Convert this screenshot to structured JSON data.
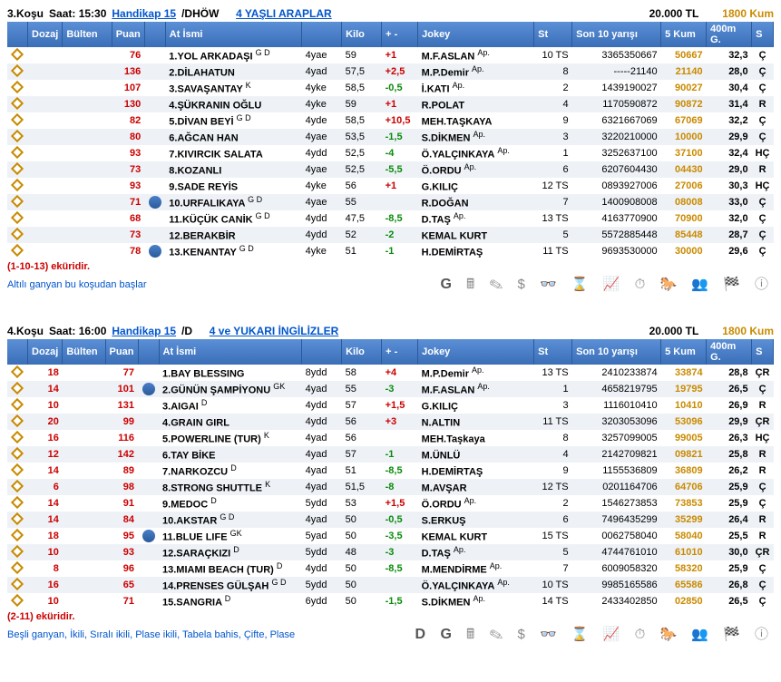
{
  "header_labels": {
    "dozaj": "Dozaj",
    "bulten": "Bülten",
    "puan": "Puan",
    "at": "At İsmi",
    "kilo": "Kilo",
    "plus": "+ -",
    "jokey": "Jokey",
    "st": "St",
    "son10": "Son 10 yarışı",
    "kum5": "5 Kum",
    "m400": "400m G.",
    "S": "S"
  },
  "races": [
    {
      "num": "3.Koşu",
      "time": "Saat: 15:30",
      "link": "Handikap 15",
      "type": "/DHÖW",
      "subtitle": "4 YAŞLI ARAPLAR",
      "prize": "20.000 TL",
      "dist": "1800 Kum",
      "rows": [
        {
          "dozaj": "",
          "puan": "76",
          "silk": false,
          "horse": "1.YOL ARKADAŞI",
          "sup": "G D",
          "age": "4yae",
          "kilo": "59",
          "plus": "+1",
          "pc": "red",
          "jokey": "M.F.ASLAN",
          "jsup": "Ap.",
          "st": "10 TS",
          "son10": "3365350667",
          "kum5": "50667",
          "m400": "32,3",
          "S": "Ç"
        },
        {
          "dozaj": "",
          "puan": "136",
          "silk": false,
          "horse": "2.DİLAHATUN",
          "sup": "",
          "age": "4yad",
          "kilo": "57,5",
          "plus": "+2,5",
          "pc": "red",
          "jokey": "M.P.Demir",
          "jsup": "Ap.",
          "st": "8",
          "son10": "-----21140",
          "kum5": "21140",
          "m400": "28,0",
          "S": "Ç"
        },
        {
          "dozaj": "",
          "puan": "107",
          "silk": false,
          "horse": "3.SAVAŞANTAY",
          "sup": "K",
          "age": "4yke",
          "kilo": "58,5",
          "plus": "-0,5",
          "pc": "green",
          "jokey": "İ.KATI",
          "jsup": "Ap.",
          "st": "2",
          "son10": "1439190027",
          "kum5": "90027",
          "m400": "30,4",
          "S": "Ç"
        },
        {
          "dozaj": "",
          "puan": "130",
          "silk": false,
          "horse": "4.ŞÜKRANIN OĞLU",
          "sup": "",
          "age": "4yke",
          "kilo": "59",
          "plus": "+1",
          "pc": "red",
          "jokey": "R.POLAT",
          "jsup": "",
          "st": "4",
          "son10": "1170590872",
          "kum5": "90872",
          "m400": "31,4",
          "S": "R"
        },
        {
          "dozaj": "",
          "puan": "82",
          "silk": false,
          "horse": "5.DİVAN BEYİ",
          "sup": "G D",
          "age": "4yde",
          "kilo": "58,5",
          "plus": "+10,5",
          "pc": "red",
          "jokey": "MEH.TAŞKAYA",
          "jsup": "",
          "st": "9",
          "son10": "6321667069",
          "kum5": "67069",
          "m400": "32,2",
          "S": "Ç"
        },
        {
          "dozaj": "",
          "puan": "80",
          "silk": false,
          "horse": "6.AĞCAN HAN",
          "sup": "",
          "age": "4yae",
          "kilo": "53,5",
          "plus": "-1,5",
          "pc": "green",
          "jokey": "S.DİKMEN",
          "jsup": "Ap.",
          "st": "3",
          "son10": "3220210000",
          "kum5": "10000",
          "m400": "29,9",
          "S": "Ç"
        },
        {
          "dozaj": "",
          "puan": "93",
          "silk": false,
          "horse": "7.KIVIRCIK SALATA",
          "sup": "",
          "age": "4ydd",
          "kilo": "52,5",
          "plus": "-4",
          "pc": "green",
          "jokey": "Ö.YALÇINKAYA",
          "jsup": "Ap.",
          "st": "1",
          "son10": "3252637100",
          "kum5": "37100",
          "m400": "32,4",
          "S": "HÇ"
        },
        {
          "dozaj": "",
          "puan": "73",
          "silk": false,
          "horse": "8.KOZANLI",
          "sup": "",
          "age": "4yae",
          "kilo": "52,5",
          "plus": "-5,5",
          "pc": "green",
          "jokey": "Ö.ORDU",
          "jsup": "Ap.",
          "st": "6",
          "son10": "6207604430",
          "kum5": "04430",
          "m400": "29,0",
          "S": "R"
        },
        {
          "dozaj": "",
          "puan": "93",
          "silk": false,
          "horse": "9.SADE REYİS",
          "sup": "",
          "age": "4yke",
          "kilo": "56",
          "plus": "+1",
          "pc": "red",
          "jokey": "G.KILIÇ",
          "jsup": "",
          "st": "12 TS",
          "son10": "0893927006",
          "kum5": "27006",
          "m400": "30,3",
          "S": "HÇ"
        },
        {
          "dozaj": "",
          "puan": "71",
          "silk": true,
          "horse": "10.URFALIKAYA",
          "sup": "G D",
          "age": "4yae",
          "kilo": "55",
          "plus": "",
          "pc": "",
          "jokey": "R.DOĞAN",
          "jsup": "",
          "st": "7",
          "son10": "1400908008",
          "kum5": "08008",
          "m400": "33,0",
          "S": "Ç"
        },
        {
          "dozaj": "",
          "puan": "68",
          "silk": false,
          "horse": "11.KÜÇÜK CANİK",
          "sup": "G D",
          "age": "4ydd",
          "kilo": "47,5",
          "plus": "-8,5",
          "pc": "green",
          "jokey": "D.TAŞ",
          "jsup": "Ap.",
          "st": "13 TS",
          "son10": "4163770900",
          "kum5": "70900",
          "m400": "32,0",
          "S": "Ç"
        },
        {
          "dozaj": "",
          "puan": "73",
          "silk": false,
          "horse": "12.BERAKBİR",
          "sup": "",
          "age": "4ydd",
          "kilo": "52",
          "plus": "-2",
          "pc": "green",
          "jokey": "KEMAL KURT",
          "jsup": "",
          "st": "5",
          "son10": "5572885448",
          "kum5": "85448",
          "m400": "28,7",
          "S": "Ç"
        },
        {
          "dozaj": "",
          "puan": "78",
          "silk": true,
          "horse": "13.KENANTAY",
          "sup": "G D",
          "age": "4yke",
          "kilo": "51",
          "plus": "-1",
          "pc": "green",
          "jokey": "H.DEMİRTAŞ",
          "jsup": "",
          "st": "11 TS",
          "son10": "9693530000",
          "kum5": "30000",
          "m400": "29,6",
          "S": "Ç"
        }
      ],
      "note1": "(1-10-13) eküridir.",
      "note2": "Altılı ganyan bu koşudan başlar",
      "toolbar": "G"
    },
    {
      "num": "4.Koşu",
      "time": "Saat: 16:00",
      "link": "Handikap 15",
      "type": "/D",
      "subtitle": "4 ve YUKARI İNGİLİZLER",
      "prize": "20.000 TL",
      "dist": "1800 Kum",
      "rows": [
        {
          "dozaj": "18",
          "puan": "77",
          "silk": false,
          "horse": "1.BAY BLESSING",
          "sup": "",
          "age": "8ydd",
          "kilo": "58",
          "plus": "+4",
          "pc": "red",
          "jokey": "M.P.Demir",
          "jsup": "Ap.",
          "st": "13 TS",
          "son10": "2410233874",
          "kum5": "33874",
          "m400": "28,8",
          "S": "ÇR"
        },
        {
          "dozaj": "14",
          "puan": "101",
          "silk": true,
          "horse": "2.GÜNÜN ŞAMPİYONU",
          "sup": "GK",
          "age": "4yad",
          "kilo": "55",
          "plus": "-3",
          "pc": "green",
          "jokey": "M.F.ASLAN",
          "jsup": "Ap.",
          "st": "1",
          "son10": "4658219795",
          "kum5": "19795",
          "m400": "26,5",
          "S": "Ç"
        },
        {
          "dozaj": "10",
          "puan": "131",
          "silk": false,
          "horse": "3.AIGAI",
          "sup": "D",
          "age": "4ydd",
          "kilo": "57",
          "plus": "+1,5",
          "pc": "red",
          "jokey": "G.KILIÇ",
          "jsup": "",
          "st": "3",
          "son10": "1116010410",
          "kum5": "10410",
          "m400": "26,9",
          "S": "R"
        },
        {
          "dozaj": "20",
          "puan": "99",
          "silk": false,
          "horse": "4.GRAIN GIRL",
          "sup": "",
          "age": "4ydd",
          "kilo": "56",
          "plus": "+3",
          "pc": "red",
          "jokey": "N.ALTIN",
          "jsup": "",
          "st": "11 TS",
          "son10": "3203053096",
          "kum5": "53096",
          "m400": "29,9",
          "S": "ÇR"
        },
        {
          "dozaj": "16",
          "puan": "116",
          "silk": false,
          "horse": "5.POWERLINE (TUR)",
          "sup": "K",
          "age": "4yad",
          "kilo": "56",
          "plus": "",
          "pc": "",
          "jokey": "MEH.Taşkaya",
          "jsup": "",
          "st": "8",
          "son10": "3257099005",
          "kum5": "99005",
          "m400": "26,3",
          "S": "HÇ"
        },
        {
          "dozaj": "12",
          "puan": "142",
          "silk": false,
          "horse": "6.TAY BİKE",
          "sup": "",
          "age": "4yad",
          "kilo": "57",
          "plus": "-1",
          "pc": "green",
          "jokey": "M.ÜNLÜ",
          "jsup": "",
          "st": "4",
          "son10": "2142709821",
          "kum5": "09821",
          "m400": "25,8",
          "S": "R"
        },
        {
          "dozaj": "14",
          "puan": "89",
          "silk": false,
          "horse": "7.NARKOZCU",
          "sup": "D",
          "age": "4yad",
          "kilo": "51",
          "plus": "-8,5",
          "pc": "green",
          "jokey": "H.DEMİRTAŞ",
          "jsup": "",
          "st": "9",
          "son10": "1155536809",
          "kum5": "36809",
          "m400": "26,2",
          "S": "R"
        },
        {
          "dozaj": "6",
          "puan": "98",
          "silk": false,
          "horse": "8.STRONG SHUTTLE",
          "sup": "K",
          "age": "4yad",
          "kilo": "51,5",
          "plus": "-8",
          "pc": "green",
          "jokey": "M.AVŞAR",
          "jsup": "",
          "st": "12 TS",
          "son10": "0201164706",
          "kum5": "64706",
          "m400": "25,9",
          "S": "Ç"
        },
        {
          "dozaj": "14",
          "puan": "91",
          "silk": false,
          "horse": "9.MEDOC",
          "sup": "D",
          "age": "5ydd",
          "kilo": "53",
          "plus": "+1,5",
          "pc": "red",
          "jokey": "Ö.ORDU",
          "jsup": "Ap.",
          "st": "2",
          "son10": "1546273853",
          "kum5": "73853",
          "m400": "25,9",
          "S": "Ç"
        },
        {
          "dozaj": "14",
          "puan": "84",
          "silk": false,
          "horse": "10.AKSTAR",
          "sup": "G D",
          "age": "4yad",
          "kilo": "50",
          "plus": "-0,5",
          "pc": "green",
          "jokey": "S.ERKUŞ",
          "jsup": "",
          "st": "6",
          "son10": "7496435299",
          "kum5": "35299",
          "m400": "26,4",
          "S": "R"
        },
        {
          "dozaj": "18",
          "puan": "95",
          "silk": true,
          "horse": "11.BLUE LIFE",
          "sup": "GK",
          "age": "5yad",
          "kilo": "50",
          "plus": "-3,5",
          "pc": "green",
          "jokey": "KEMAL KURT",
          "jsup": "",
          "st": "15 TS",
          "son10": "0062758040",
          "kum5": "58040",
          "m400": "25,5",
          "S": "R"
        },
        {
          "dozaj": "10",
          "puan": "93",
          "silk": false,
          "horse": "12.SARAÇKIZI",
          "sup": "D",
          "age": "5ydd",
          "kilo": "48",
          "plus": "-3",
          "pc": "green",
          "jokey": "D.TAŞ",
          "jsup": "Ap.",
          "st": "5",
          "son10": "4744761010",
          "kum5": "61010",
          "m400": "30,0",
          "S": "ÇR"
        },
        {
          "dozaj": "8",
          "puan": "96",
          "silk": false,
          "horse": "13.MIAMI BEACH (TUR)",
          "sup": "D",
          "age": "4ydd",
          "kilo": "50",
          "plus": "-8,5",
          "pc": "green",
          "jokey": "M.MENDİRME",
          "jsup": "Ap.",
          "st": "7",
          "son10": "6009058320",
          "kum5": "58320",
          "m400": "25,9",
          "S": "Ç"
        },
        {
          "dozaj": "16",
          "puan": "65",
          "silk": false,
          "horse": "14.PRENSES GÜLŞAH",
          "sup": "G D",
          "age": "5ydd",
          "kilo": "50",
          "plus": "",
          "pc": "",
          "jokey": "Ö.YALÇINKAYA",
          "jsup": "Ap.",
          "st": "10 TS",
          "son10": "9985165586",
          "kum5": "65586",
          "m400": "26,8",
          "S": "Ç"
        },
        {
          "dozaj": "10",
          "puan": "71",
          "silk": false,
          "horse": "15.SANGRIA",
          "sup": "D",
          "age": "6ydd",
          "kilo": "50",
          "plus": "-1,5",
          "pc": "green",
          "jokey": "S.DİKMEN",
          "jsup": "Ap.",
          "st": "14 TS",
          "son10": "2433402850",
          "kum5": "02850",
          "m400": "26,5",
          "S": "Ç"
        }
      ],
      "note1": "(2-11) eküridir.",
      "note2": "Beşli ganyan, İkili, Sıralı ikili, Plase ikili, Tabela bahis, Çifte, Plase",
      "toolbar": "D G"
    }
  ]
}
